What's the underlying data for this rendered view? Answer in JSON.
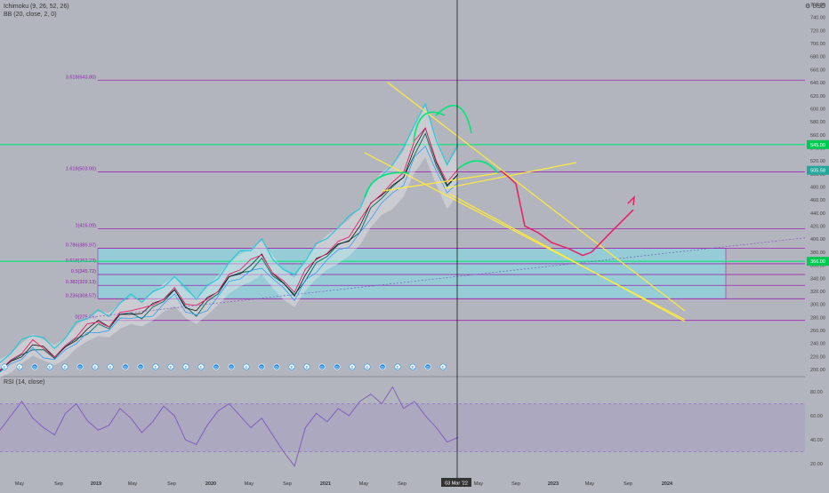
{
  "header": {
    "indicator_1": "Ichimoku (9, 26, 52, 26)",
    "indicator_2": "BB (20, close, 2, 0)",
    "currency": "USD",
    "rsi_label": "RSI (14, close)"
  },
  "colors": {
    "background": "#b2b5be",
    "fib_line": "#9c27b0",
    "support_line": "#00e676",
    "trend_line": "#ffeb3b",
    "projection": "#e91e63",
    "box_fill": "#80deea",
    "price_badge": "#00c853"
  },
  "price_axis": {
    "ticks": [
      "760.00",
      "740.00",
      "720.00",
      "700.00",
      "680.00",
      "660.00",
      "640.00",
      "620.00",
      "600.00",
      "580.00",
      "560.00",
      "540.00",
      "520.00",
      "500.00",
      "480.00",
      "460.00",
      "440.00",
      "420.00",
      "400.00",
      "380.00",
      "360.00",
      "340.00",
      "320.00",
      "300.00",
      "280.00",
      "260.00",
      "240.00",
      "220.00",
      "200.00"
    ],
    "current_price_badge": "505.58",
    "green_badge_top": "545.00",
    "green_badge_bottom": "366.00"
  },
  "rsi_axis": {
    "ticks": [
      "80.00",
      "60.00",
      "40.00",
      "20.00"
    ]
  },
  "time_axis": {
    "labels": [
      "May",
      "Sep",
      "2019",
      "May",
      "Sep",
      "2020",
      "May",
      "Sep",
      "2021",
      "May",
      "Sep",
      "2022",
      "May",
      "Sep",
      "2023",
      "May",
      "Sep",
      "2024"
    ],
    "crosshair_label": "03 Mar '22"
  },
  "fib_levels": [
    {
      "label": "3.618(643.80)",
      "value": 643.8
    },
    {
      "label": "1.618(503.06)",
      "value": 503.06
    },
    {
      "label": "1(416.09)",
      "value": 416.09
    },
    {
      "label": "0.786(385.97)",
      "value": 385.97
    },
    {
      "label": "0.618(362.23)",
      "value": 362.23
    },
    {
      "label": "0.5(345.72)",
      "value": 345.72
    },
    {
      "label": "0.382(329.13)",
      "value": 329.13
    },
    {
      "label": "0.236(308.57)",
      "value": 308.57
    },
    {
      "label": "0(275.36)",
      "value": 275.36
    }
  ],
  "event_markers": [
    "E",
    "E",
    "D",
    "E",
    "E",
    "D",
    "E",
    "E",
    "D",
    "D",
    "E",
    "E",
    "E",
    "E",
    "D",
    "D",
    "E",
    "D",
    "D",
    "E",
    "E",
    "D",
    "D",
    "E",
    "E",
    "D",
    "E",
    "E",
    "D",
    "E"
  ],
  "chart_data": [
    {
      "type": "line",
      "title": "",
      "ylabel": "USD",
      "ylim": [
        200,
        760
      ],
      "support_lines": [
        545,
        366
      ],
      "series": [
        {
          "values": [
            202,
            210,
            225,
            238,
            230,
            222,
            232,
            250,
            262,
            270,
            268,
            282,
            290,
            286,
            296,
            310,
            320,
            300,
            290,
            305,
            322,
            340,
            352,
            360,
            372,
            350,
            330,
            318,
            345,
            365,
            380,
            390,
            402,
            420,
            450,
            470,
            480,
            500,
            540,
            565,
            520,
            480,
            505
          ]
        }
      ],
      "projection": [
        505,
        495,
        485,
        420,
        410,
        395,
        385,
        375,
        380,
        415,
        445
      ]
    },
    {
      "type": "line",
      "title": "",
      "ylim": [
        10,
        95
      ],
      "series": [
        {
          "name": "RSI (14, close)",
          "values": [
            48,
            60,
            72,
            58,
            50,
            44,
            62,
            70,
            56,
            48,
            52,
            66,
            58,
            46,
            55,
            68,
            60,
            40,
            36,
            52,
            64,
            70,
            60,
            50,
            58,
            44,
            30,
            18,
            50,
            62,
            55,
            66,
            60,
            72,
            78,
            70,
            84,
            66,
            72,
            60,
            50,
            38,
            42
          ]
        }
      ]
    }
  ]
}
